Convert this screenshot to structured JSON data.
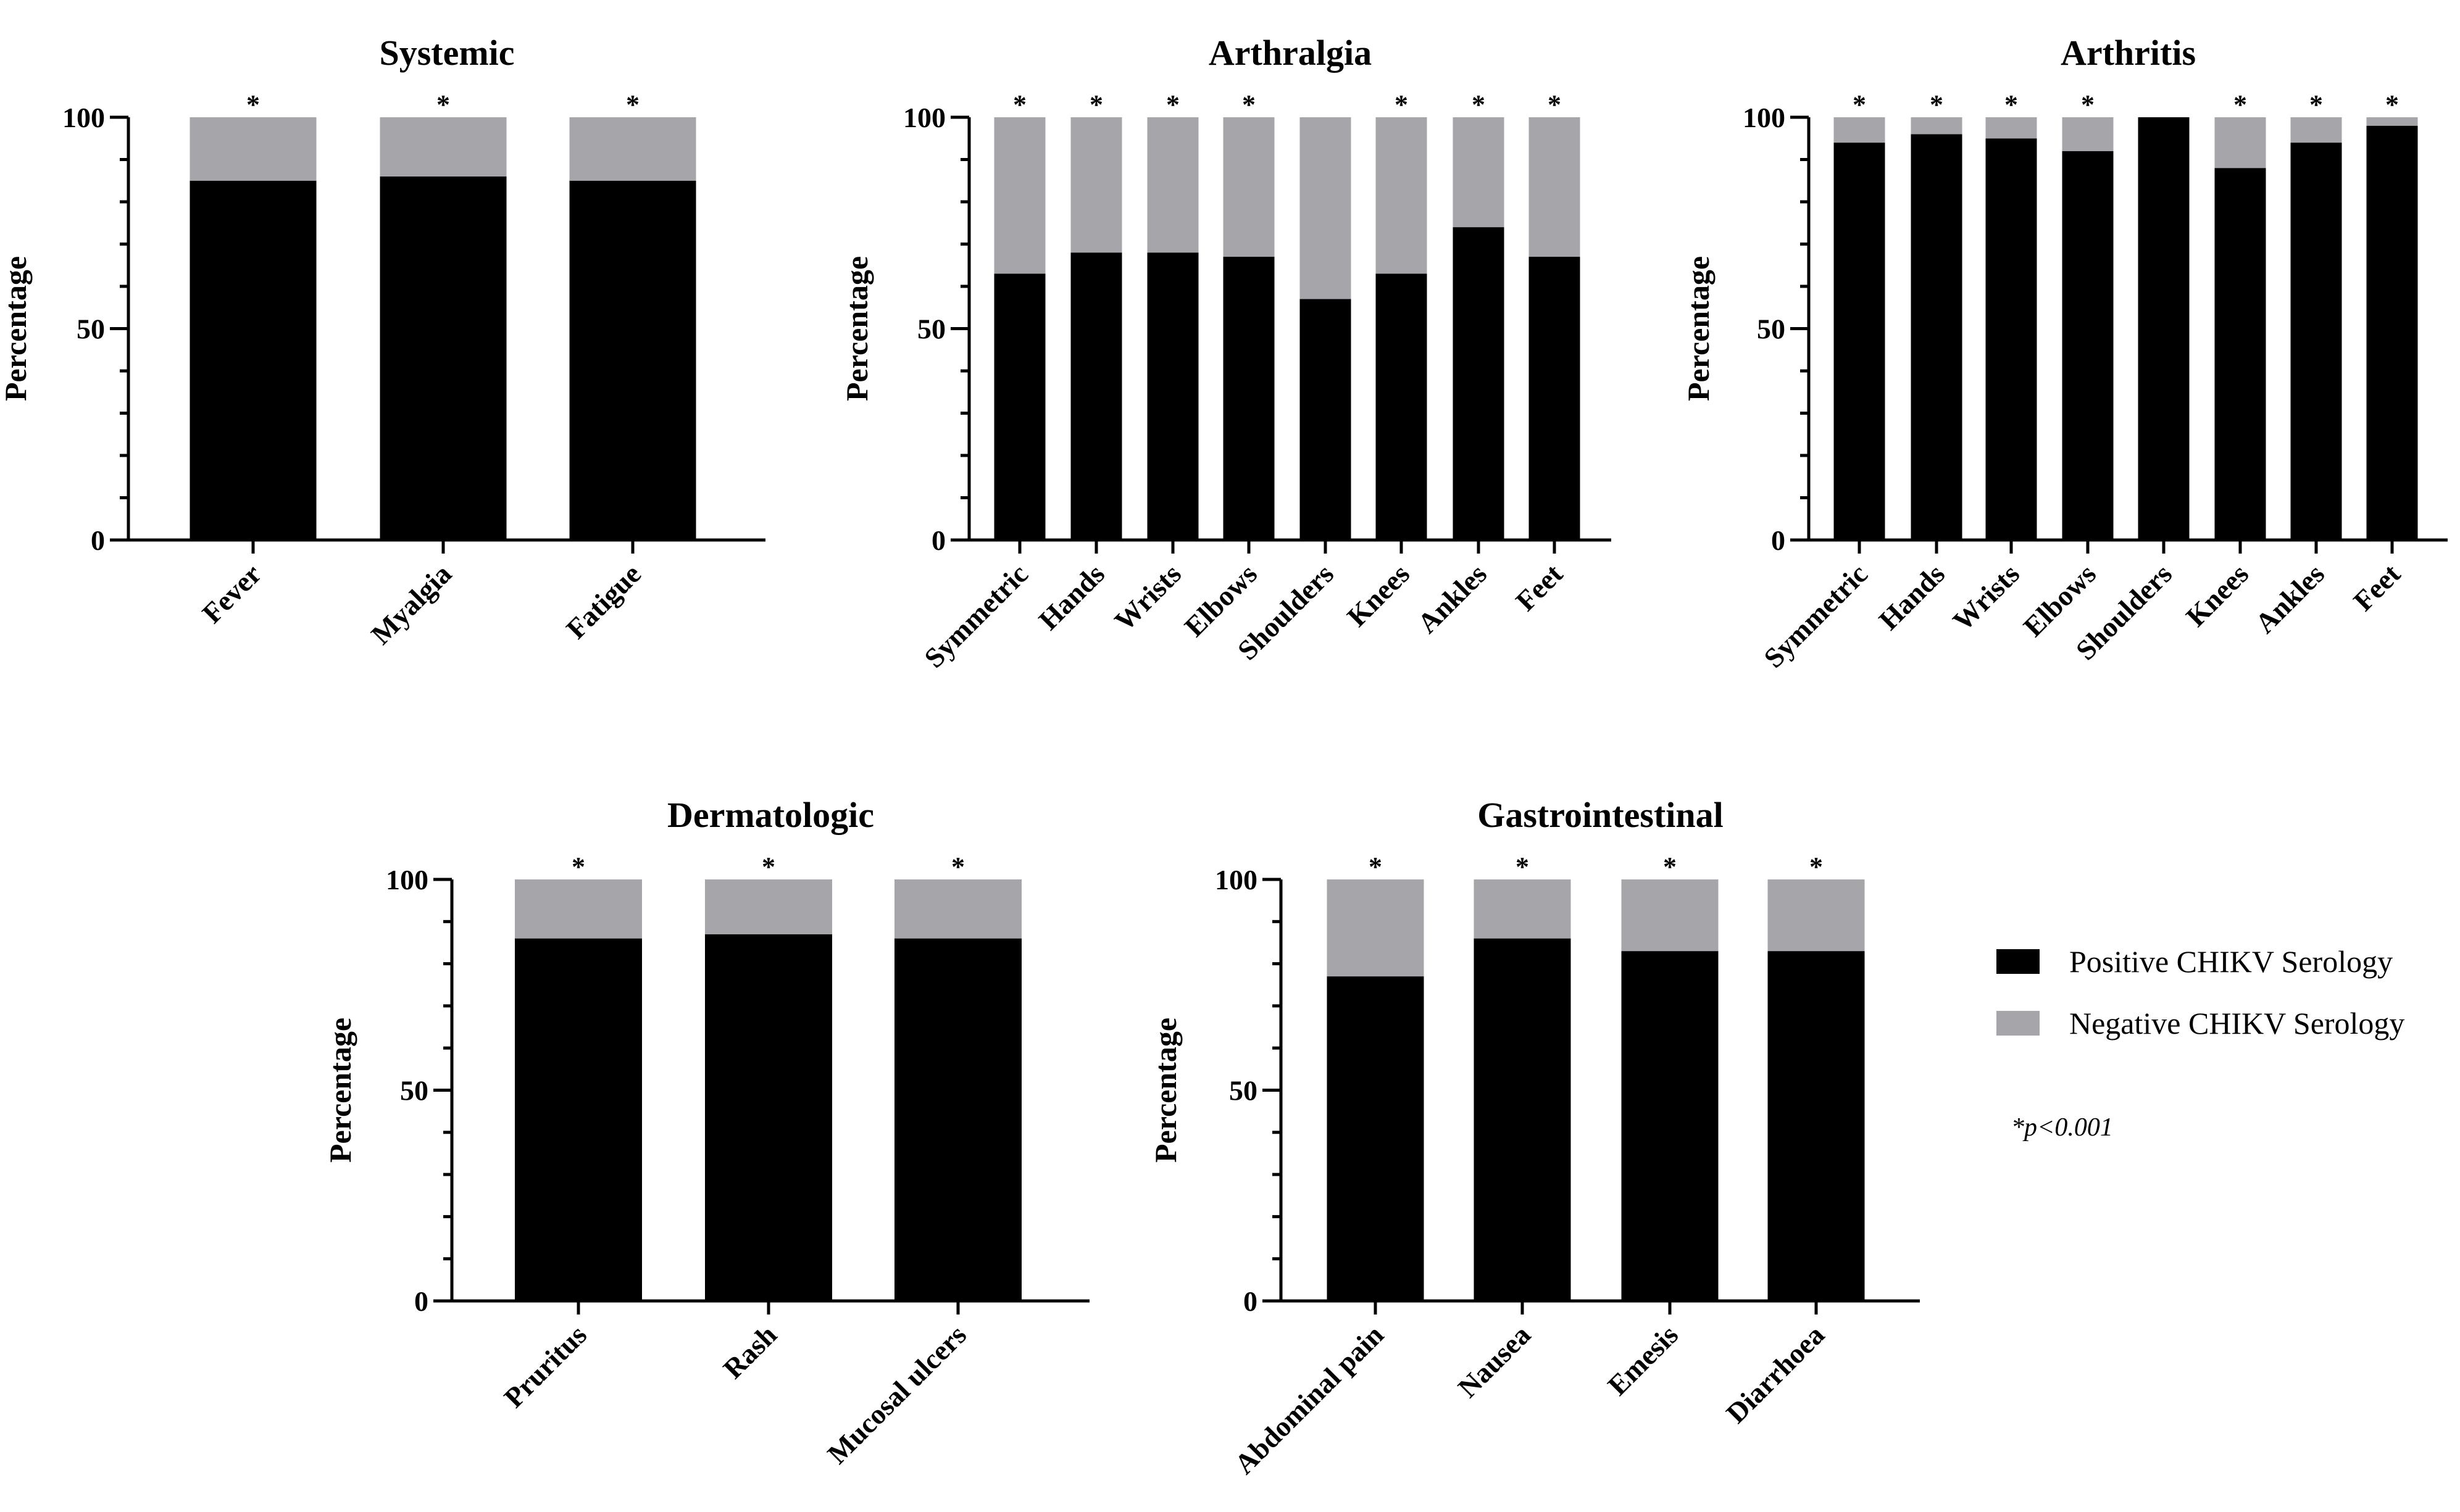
{
  "chart_data": [
    {
      "type": "bar",
      "stacked": true,
      "title": "Systemic",
      "ylabel": "Percentage",
      "ylim": [
        0,
        100
      ],
      "yticks": [
        0,
        50,
        100
      ],
      "categories": [
        "Fever",
        "Myalgia",
        "Fatigue"
      ],
      "series": [
        {
          "name": "Positive CHIKV Serology",
          "values": [
            85,
            86,
            85
          ]
        },
        {
          "name": "Negative CHIKV Serology",
          "values": [
            15,
            14,
            15
          ]
        }
      ],
      "annotations": [
        "*",
        "*",
        "*"
      ]
    },
    {
      "type": "bar",
      "stacked": true,
      "title": "Arthralgia",
      "ylabel": "Percentage",
      "ylim": [
        0,
        100
      ],
      "yticks": [
        0,
        50,
        100
      ],
      "categories": [
        "Symmetric",
        "Hands",
        "Wrists",
        "Elbows",
        "Shoulders",
        "Knees",
        "Ankles",
        "Feet"
      ],
      "series": [
        {
          "name": "Positive CHIKV Serology",
          "values": [
            63,
            68,
            68,
            67,
            57,
            63,
            74,
            67
          ]
        },
        {
          "name": "Negative CHIKV Serology",
          "values": [
            37,
            32,
            32,
            33,
            43,
            37,
            26,
            33
          ]
        }
      ],
      "annotations": [
        "*",
        "*",
        "*",
        "*",
        "",
        "*",
        "*",
        "*"
      ]
    },
    {
      "type": "bar",
      "stacked": true,
      "title": "Arthritis",
      "ylabel": "Percentage",
      "ylim": [
        0,
        100
      ],
      "yticks": [
        0,
        50,
        100
      ],
      "categories": [
        "Symmetric",
        "Hands",
        "Wrists",
        "Elbows",
        "Shoulders",
        "Knees",
        "Ankles",
        "Feet"
      ],
      "series": [
        {
          "name": "Positive CHIKV Serology",
          "values": [
            94,
            96,
            95,
            92,
            100,
            88,
            94,
            98
          ]
        },
        {
          "name": "Negative CHIKV Serology",
          "values": [
            6,
            4,
            5,
            8,
            0,
            12,
            6,
            2
          ]
        }
      ],
      "annotations": [
        "*",
        "*",
        "*",
        "*",
        "",
        "*",
        "*",
        "*"
      ]
    },
    {
      "type": "bar",
      "stacked": true,
      "title": "Dermatologic",
      "ylabel": "Percentage",
      "ylim": [
        0,
        100
      ],
      "yticks": [
        0,
        50,
        100
      ],
      "categories": [
        "Pruritus",
        "Rash",
        "Mucosal ulcers"
      ],
      "series": [
        {
          "name": "Positive CHIKV Serology",
          "values": [
            86,
            87,
            86
          ]
        },
        {
          "name": "Negative CHIKV Serology",
          "values": [
            14,
            13,
            14
          ]
        }
      ],
      "annotations": [
        "*",
        "*",
        "*"
      ]
    },
    {
      "type": "bar",
      "stacked": true,
      "title": "Gastrointestinal",
      "ylabel": "Percentage",
      "ylim": [
        0,
        100
      ],
      "yticks": [
        0,
        50,
        100
      ],
      "categories": [
        "Abdominal pain",
        "Nausea",
        "Emesis",
        "Diarrhoea"
      ],
      "series": [
        {
          "name": "Positive CHIKV Serology",
          "values": [
            77,
            86,
            83,
            83
          ]
        },
        {
          "name": "Negative CHIKV Serology",
          "values": [
            23,
            14,
            17,
            17
          ]
        }
      ],
      "annotations": [
        "*",
        "*",
        "*",
        "*"
      ]
    }
  ],
  "legend": {
    "position": "right",
    "items": [
      {
        "label": "Positive CHIKV Serology",
        "color": "#000000"
      },
      {
        "label": "Negative CHIKV Serology",
        "color": "#a5a5aa"
      }
    ]
  },
  "note": "*p<0.001",
  "colors": {
    "positive": "#000000",
    "negative": "#a5a5aa",
    "axis": "#000000"
  }
}
